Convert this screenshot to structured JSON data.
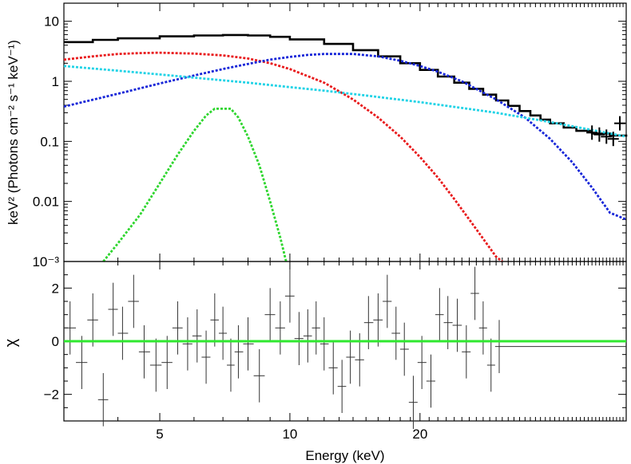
{
  "chart_data": [
    {
      "type": "line",
      "panel": "spectrum",
      "xlabel": "Energy (keV)",
      "ylabel": "keV² (Photons cm⁻² s⁻¹ keV⁻¹)",
      "xscale": "log",
      "yscale": "log",
      "xlim": [
        3,
        60
      ],
      "ylim": [
        0.001,
        20
      ],
      "ytick_labels": [
        {
          "value": 0.001,
          "label": "10⁻³"
        },
        {
          "value": 0.01,
          "label": "0.01"
        },
        {
          "value": 0.1,
          "label": "0.1"
        },
        {
          "value": 1,
          "label": "1"
        },
        {
          "value": 10,
          "label": "10"
        }
      ],
      "series": [
        {
          "style": "solid-step",
          "color": "#000000",
          "x": [
            3.0,
            3.5,
            4.0,
            5.0,
            6.0,
            7.0,
            8.0,
            9.0,
            10.0,
            12.0,
            14.0,
            16.0,
            18.0,
            20.0,
            22.0,
            24.0,
            26.0,
            28.0,
            30.0,
            32.0,
            34.0,
            36.0,
            38.0,
            40.0,
            43.0,
            46.0,
            50.0,
            55.0,
            60.0
          ],
          "values": [
            4.5,
            4.9,
            5.2,
            5.6,
            5.8,
            5.9,
            5.8,
            5.5,
            5.0,
            4.2,
            3.3,
            2.6,
            2.0,
            1.55,
            1.2,
            0.95,
            0.75,
            0.6,
            0.48,
            0.39,
            0.32,
            0.27,
            0.23,
            0.2,
            0.17,
            0.15,
            0.135,
            0.125,
            0.12
          ]
        },
        {
          "style": "dotted",
          "color": "#e8191b",
          "x": [
            3.0,
            3.5,
            4.0,
            4.5,
            5.0,
            6.0,
            7.0,
            8.0,
            9.0,
            10.0,
            12.0,
            14.0,
            16.0,
            18.0,
            20.0,
            22.0,
            24.0,
            26.0,
            28.0,
            30.0,
            31.0
          ],
          "values": [
            2.3,
            2.6,
            2.85,
            2.95,
            3.0,
            2.9,
            2.7,
            2.4,
            2.0,
            1.6,
            0.95,
            0.5,
            0.25,
            0.12,
            0.055,
            0.025,
            0.011,
            0.005,
            0.0024,
            0.0012,
            0.001
          ]
        },
        {
          "style": "dotted",
          "color": "#1726d8",
          "x": [
            3.0,
            4.0,
            5.0,
            6.0,
            7.0,
            8.0,
            9.0,
            10.0,
            11.0,
            12.0,
            14.0,
            16.0,
            18.0,
            20.0,
            22.0,
            25.0,
            28.0,
            30.0,
            35.0,
            40.0,
            45.0,
            50.0,
            55.0,
            60.0
          ],
          "values": [
            0.38,
            0.62,
            0.92,
            1.25,
            1.6,
            1.95,
            2.3,
            2.55,
            2.75,
            2.85,
            2.85,
            2.6,
            2.2,
            1.8,
            1.45,
            1.0,
            0.65,
            0.5,
            0.25,
            0.11,
            0.045,
            0.017,
            0.0065,
            0.005
          ]
        },
        {
          "style": "dotted",
          "color": "#22d3e6",
          "x": [
            3.0,
            4.0,
            5.0,
            6.0,
            8.0,
            10.0,
            12.0,
            15.0,
            20.0,
            25.0,
            30.0,
            40.0,
            50.0,
            60.0
          ],
          "values": [
            1.8,
            1.5,
            1.3,
            1.15,
            0.95,
            0.8,
            0.7,
            0.58,
            0.45,
            0.36,
            0.3,
            0.21,
            0.155,
            0.12
          ]
        },
        {
          "style": "dotted",
          "color": "#2fd62f",
          "x": [
            3.7,
            4.0,
            4.5,
            5.0,
            5.5,
            6.0,
            6.4,
            6.7,
            7.0,
            7.3,
            7.6,
            8.0,
            8.5,
            9.0,
            9.5,
            9.8
          ],
          "values": [
            0.001,
            0.002,
            0.006,
            0.02,
            0.06,
            0.15,
            0.27,
            0.35,
            0.35,
            0.35,
            0.25,
            0.12,
            0.04,
            0.01,
            0.0025,
            0.001
          ]
        }
      ],
      "data_points": {
        "color": "#000000",
        "x": [
          50.0,
          52.0,
          54.0,
          56.0,
          58.0
        ],
        "values": [
          0.14,
          0.13,
          0.12,
          0.11,
          0.2
        ]
      }
    },
    {
      "type": "scatter",
      "panel": "residuals",
      "xlabel": "Energy (keV)",
      "ylabel": "χ",
      "xscale": "log",
      "xlim": [
        3,
        60
      ],
      "ylim": [
        -3,
        3
      ],
      "xticks": [
        5,
        10,
        20
      ],
      "xtick_labels": [
        "5",
        "10",
        "20"
      ],
      "yticks": [
        -2,
        0,
        2
      ],
      "ytick_labels": [
        "−2",
        "0",
        "2"
      ],
      "zero_line_color": "#2fe82f",
      "error": 1,
      "points": [
        [
          3.1,
          0.5
        ],
        [
          3.3,
          -0.8
        ],
        [
          3.5,
          0.8
        ],
        [
          3.7,
          -2.2
        ],
        [
          3.9,
          1.2
        ],
        [
          4.1,
          0.3
        ],
        [
          4.35,
          1.5
        ],
        [
          4.6,
          -0.4
        ],
        [
          4.9,
          -0.9
        ],
        [
          5.2,
          -0.8
        ],
        [
          5.5,
          0.5
        ],
        [
          5.8,
          -0.1
        ],
        [
          6.1,
          0.2
        ],
        [
          6.4,
          -0.6
        ],
        [
          6.7,
          0.8
        ],
        [
          7.0,
          0.3
        ],
        [
          7.3,
          -0.9
        ],
        [
          7.6,
          -0.4
        ],
        [
          8.0,
          -0.1
        ],
        [
          8.5,
          -1.3
        ],
        [
          9.0,
          1.0
        ],
        [
          9.5,
          0.5
        ],
        [
          10.0,
          1.7
        ],
        [
          10.5,
          0.1
        ],
        [
          11.0,
          0.2
        ],
        [
          11.5,
          0.5
        ],
        [
          12.0,
          -0.1
        ],
        [
          12.6,
          -1.0
        ],
        [
          13.2,
          -1.7
        ],
        [
          13.8,
          -0.6
        ],
        [
          14.5,
          -0.7
        ],
        [
          15.2,
          0.7
        ],
        [
          16.0,
          0.8
        ],
        [
          16.8,
          1.5
        ],
        [
          17.6,
          0.3
        ],
        [
          18.4,
          -0.3
        ],
        [
          19.3,
          -2.3
        ],
        [
          20.2,
          -0.8
        ],
        [
          21.2,
          -1.5
        ],
        [
          22.2,
          1.0
        ],
        [
          23.2,
          0.7
        ],
        [
          24.4,
          0.6
        ],
        [
          25.6,
          -0.4
        ],
        [
          26.8,
          1.8
        ],
        [
          28.0,
          0.5
        ],
        [
          29.2,
          -0.9
        ],
        [
          30.5,
          -0.2
        ]
      ]
    }
  ]
}
